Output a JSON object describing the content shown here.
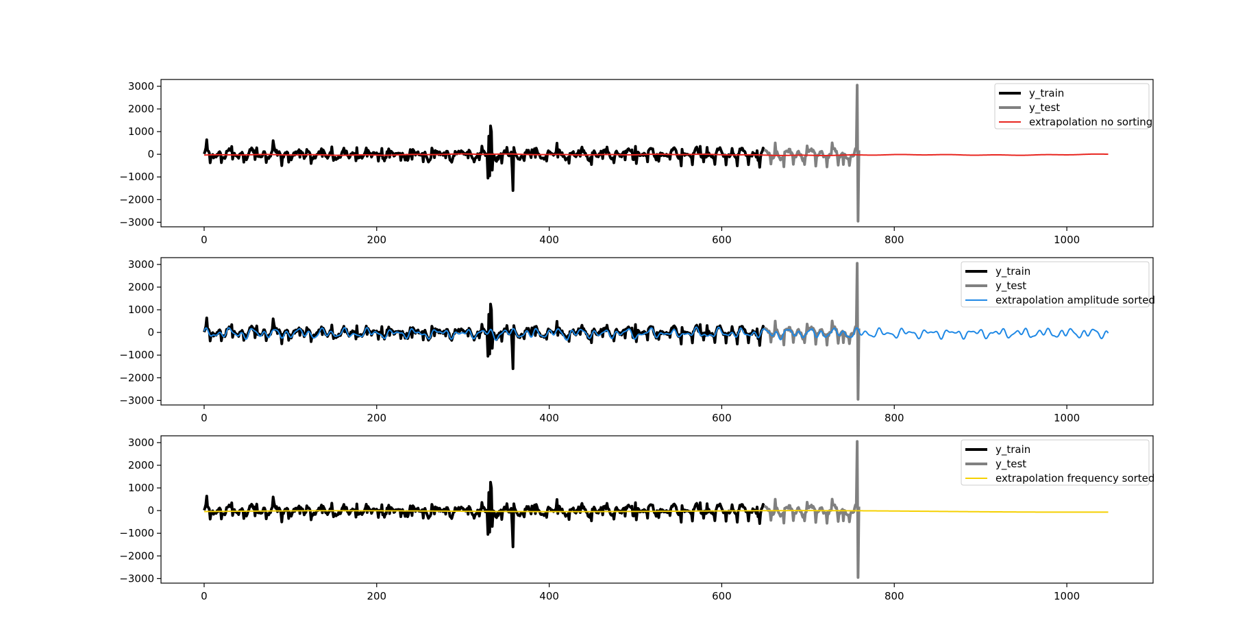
{
  "chart_data": [
    {
      "type": "line",
      "title": "",
      "xlabel": "",
      "ylabel": "",
      "xlim": [
        -50,
        1100
      ],
      "ylim": [
        -3200,
        3300
      ],
      "xticks": [
        0,
        200,
        400,
        600,
        800,
        1000
      ],
      "yticks": [
        -3000,
        -2000,
        -1000,
        0,
        1000,
        2000,
        3000
      ],
      "grid": false,
      "legend_position": "top-right",
      "series": [
        {
          "name": "y_train",
          "color": "#000000",
          "x_range": [
            0,
            649
          ],
          "description": "observed signal (training portion)"
        },
        {
          "name": "y_test",
          "color": "#808080",
          "x_range": [
            650,
            759
          ]
        },
        {
          "name": "extrapolation no sorting",
          "color": "#e8251f",
          "x_range": [
            0,
            1048
          ],
          "approx_amplitude": 30
        }
      ]
    },
    {
      "type": "line",
      "title": "",
      "xlabel": "",
      "ylabel": "",
      "xlim": [
        -50,
        1100
      ],
      "ylim": [
        -3200,
        3300
      ],
      "xticks": [
        0,
        200,
        400,
        600,
        800,
        1000
      ],
      "yticks": [
        -3000,
        -2000,
        -1000,
        0,
        1000,
        2000,
        3000
      ],
      "grid": false,
      "legend_position": "top-right",
      "series": [
        {
          "name": "y_train",
          "color": "#000000",
          "x_range": [
            0,
            649
          ]
        },
        {
          "name": "y_test",
          "color": "#808080",
          "x_range": [
            650,
            759
          ]
        },
        {
          "name": "extrapolation amplitude sorted",
          "color": "#1e88e5",
          "x_range": [
            0,
            1048
          ],
          "approx_amplitude": 300
        }
      ]
    },
    {
      "type": "line",
      "title": "",
      "xlabel": "",
      "ylabel": "",
      "xlim": [
        -50,
        1100
      ],
      "ylim": [
        -3200,
        3300
      ],
      "xticks": [
        0,
        200,
        400,
        600,
        800,
        1000
      ],
      "yticks": [
        -3000,
        -2000,
        -1000,
        0,
        1000,
        2000,
        3000
      ],
      "grid": false,
      "legend_position": "top-right",
      "series": [
        {
          "name": "y_train",
          "color": "#000000",
          "x_range": [
            0,
            649
          ]
        },
        {
          "name": "y_test",
          "color": "#808080",
          "x_range": [
            650,
            759
          ]
        },
        {
          "name": "extrapolation frequency sorted",
          "color": "#f5d000",
          "x_range": [
            0,
            1048
          ],
          "approx_amplitude": 40
        }
      ]
    }
  ]
}
